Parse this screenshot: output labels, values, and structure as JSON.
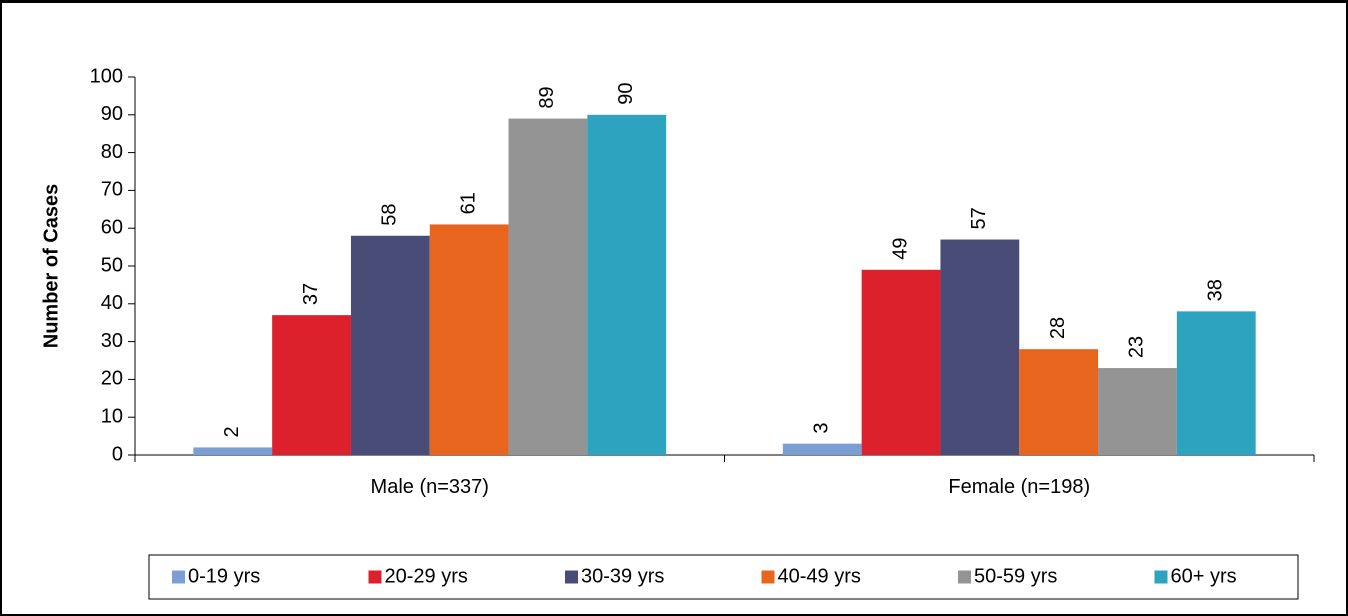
{
  "chart_data": {
    "type": "bar",
    "categories": [
      "Male (n=337)",
      "Female (n=198)"
    ],
    "series": [
      {
        "name": "0-19 yrs",
        "color": "#7b9fd4",
        "values": [
          2,
          3
        ]
      },
      {
        "name": "20-29 yrs",
        "color": "#dc212c",
        "values": [
          37,
          49
        ]
      },
      {
        "name": "30-39 yrs",
        "color": "#484c76",
        "values": [
          58,
          57
        ]
      },
      {
        "name": "40-49 yrs",
        "color": "#e8651e",
        "values": [
          61,
          28
        ]
      },
      {
        "name": "50-59 yrs",
        "color": "#949494",
        "values": [
          89,
          23
        ]
      },
      {
        "name": "60+ yrs",
        "color": "#2ea3bf",
        "values": [
          90,
          38
        ]
      }
    ],
    "title": "",
    "xlabel": "",
    "ylabel": "Number of Cases",
    "ylim": [
      0,
      100
    ],
    "yticks": [
      0,
      10,
      20,
      30,
      40,
      50,
      60,
      70,
      80,
      90,
      100
    ],
    "grid": false,
    "legend": "bottom",
    "data_labels": true
  }
}
